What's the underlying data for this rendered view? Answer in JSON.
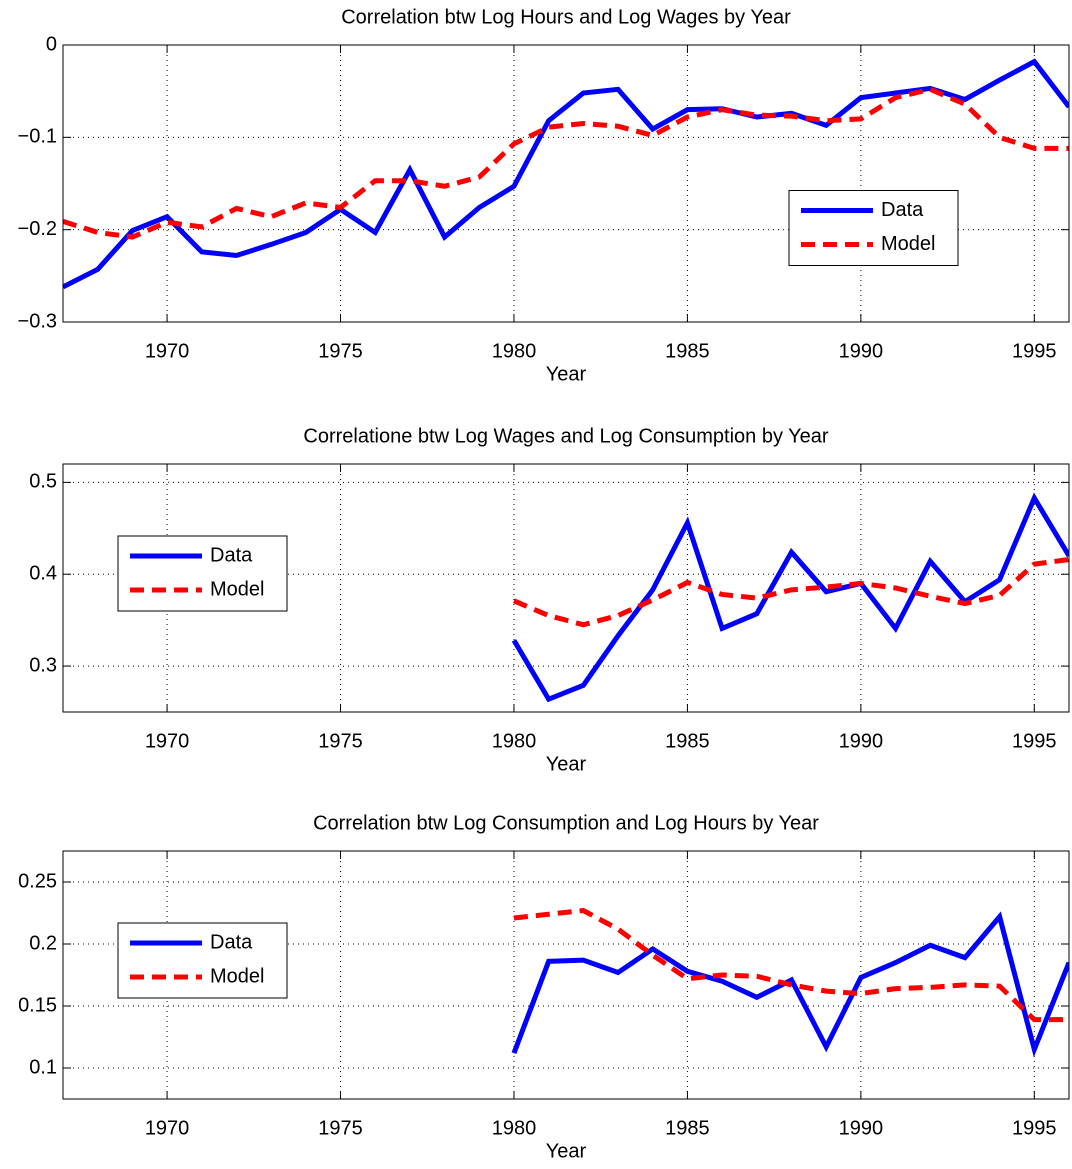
{
  "chart_data": [
    {
      "type": "line",
      "title": "Correlation btw Log Hours and Log Wages by Year",
      "xlabel": "Year",
      "x": [
        1967,
        1968,
        1969,
        1970,
        1971,
        1972,
        1973,
        1974,
        1975,
        1976,
        1977,
        1978,
        1979,
        1980,
        1981,
        1982,
        1983,
        1984,
        1985,
        1986,
        1987,
        1988,
        1989,
        1990,
        1991,
        1992,
        1993,
        1994,
        1995,
        1996
      ],
      "series": [
        {
          "name": "Data",
          "color": "#0000ff",
          "dash": "solid",
          "values": [
            -0.262,
            -0.243,
            -0.201,
            -0.186,
            -0.224,
            -0.228,
            -0.216,
            -0.203,
            -0.178,
            -0.203,
            -0.135,
            -0.208,
            -0.176,
            -0.153,
            -0.082,
            -0.052,
            -0.048,
            -0.091,
            -0.07,
            -0.069,
            -0.078,
            -0.074,
            -0.087,
            -0.057,
            -0.052,
            -0.047,
            -0.059,
            -0.038,
            -0.018,
            -0.067
          ]
        },
        {
          "name": "Model",
          "color": "#ff0000",
          "dash": "dashed",
          "values": [
            -0.191,
            -0.203,
            -0.208,
            -0.192,
            -0.197,
            -0.177,
            -0.186,
            -0.171,
            -0.176,
            -0.147,
            -0.147,
            -0.153,
            -0.143,
            -0.107,
            -0.089,
            -0.085,
            -0.088,
            -0.098,
            -0.078,
            -0.07,
            -0.076,
            -0.077,
            -0.082,
            -0.08,
            -0.057,
            -0.048,
            -0.064,
            -0.1,
            -0.112,
            -0.112
          ]
        }
      ],
      "xlim": [
        1967,
        1996
      ],
      "xticks": [
        1970,
        1975,
        1980,
        1985,
        1990,
        1995
      ],
      "ylim": [
        -0.3,
        0
      ],
      "yticks": [
        {
          "value": -0.3,
          "label": "−0.3"
        },
        {
          "value": -0.2,
          "label": "−0.2"
        },
        {
          "value": -0.1,
          "label": "−0.1"
        },
        0
      ],
      "grid": true,
      "legend": "east"
    },
    {
      "type": "line",
      "title": "Correlatione btw Log Wages and Log Consumption by Year",
      "xlabel": "Year",
      "x": [
        1980,
        1981,
        1982,
        1983,
        1984,
        1985,
        1986,
        1987,
        1988,
        1989,
        1990,
        1991,
        1992,
        1993,
        1994,
        1995,
        1996
      ],
      "series": [
        {
          "name": "Data",
          "color": "#0000ff",
          "dash": "solid",
          "values": [
            0.328,
            0.264,
            0.279,
            0.333,
            0.383,
            0.456,
            0.341,
            0.357,
            0.424,
            0.381,
            0.39,
            0.341,
            0.414,
            0.37,
            0.394,
            0.483,
            0.42
          ]
        },
        {
          "name": "Model",
          "color": "#ff0000",
          "dash": "dashed",
          "values": [
            0.371,
            0.355,
            0.345,
            0.355,
            0.372,
            0.391,
            0.378,
            0.374,
            0.383,
            0.386,
            0.39,
            0.385,
            0.376,
            0.368,
            0.377,
            0.411,
            0.416
          ]
        }
      ],
      "xlim": [
        1967,
        1996
      ],
      "xticks": [
        1970,
        1975,
        1980,
        1985,
        1990,
        1995
      ],
      "ylim": [
        0.25,
        0.52
      ],
      "yticks": [
        0.3,
        0.4,
        0.5
      ],
      "grid": true,
      "legend": "west"
    },
    {
      "type": "line",
      "title": "Correlation btw Log Consumption and Log Hours by Year",
      "xlabel": "Year",
      "x": [
        1980,
        1981,
        1982,
        1983,
        1984,
        1985,
        1986,
        1987,
        1988,
        1989,
        1990,
        1991,
        1992,
        1993,
        1994,
        1995,
        1996
      ],
      "series": [
        {
          "name": "Data",
          "color": "#0000ff",
          "dash": "solid",
          "values": [
            0.112,
            0.186,
            0.187,
            0.177,
            0.196,
            0.178,
            0.17,
            0.157,
            0.171,
            0.117,
            0.173,
            0.185,
            0.199,
            0.189,
            0.222,
            0.115,
            0.185
          ]
        },
        {
          "name": "Model",
          "color": "#ff0000",
          "dash": "dashed",
          "values": [
            0.221,
            0.224,
            0.227,
            0.212,
            0.191,
            0.172,
            0.175,
            0.174,
            0.167,
            0.162,
            0.16,
            0.164,
            0.165,
            0.167,
            0.166,
            0.139,
            0.139
          ]
        }
      ],
      "xlim": [
        1967,
        1996
      ],
      "xticks": [
        1970,
        1975,
        1980,
        1985,
        1990,
        1995
      ],
      "ylim": [
        0.075,
        0.275
      ],
      "yticks": [
        0.1,
        0.15,
        0.2,
        0.25
      ],
      "grid": true,
      "legend": "west"
    }
  ]
}
